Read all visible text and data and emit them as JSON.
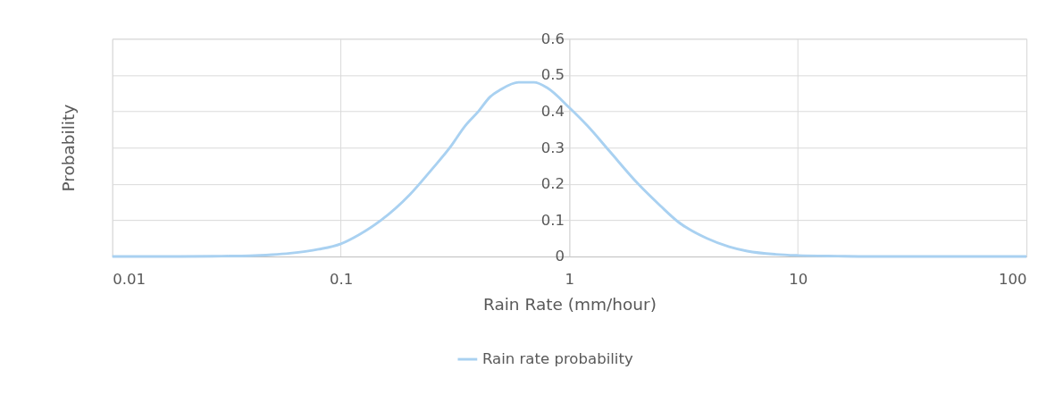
{
  "chart_data": {
    "type": "line",
    "xlabel": "Rain Rate (mm/hour)",
    "ylabel": "Probability",
    "log": "x",
    "grid": true,
    "legend": "bottom",
    "marker": "none",
    "line_style": "solid",
    "xlim": [
      0.01,
      100
    ],
    "xticks": [
      0.01,
      0.1,
      1,
      10,
      100
    ],
    "ylim": [
      0,
      0.6
    ],
    "yticks": [
      0,
      0.1,
      0.2,
      0.3,
      0.4,
      0.5,
      0.6
    ],
    "x": [
      0.01,
      0.02,
      0.03,
      0.04,
      0.05,
      0.06,
      0.07,
      0.08,
      0.1,
      0.12,
      0.15,
      0.2,
      0.25,
      0.3,
      0.35,
      0.4,
      0.45,
      0.5,
      0.6,
      0.7,
      0.8,
      1,
      1.2,
      1.5,
      2,
      2.5,
      3,
      4,
      5,
      6,
      8,
      10,
      15,
      20,
      50,
      100
    ],
    "series": [
      {
        "name": "Rain rate probability",
        "color": "#a9d1f1",
        "values": [
          0,
          0,
          0.001,
          0.002,
          0.005,
          0.009,
          0.014,
          0.02,
          0.035,
          0.06,
          0.1,
          0.17,
          0.24,
          0.3,
          0.36,
          0.4,
          0.44,
          0.46,
          0.48,
          0.48,
          0.465,
          0.41,
          0.36,
          0.29,
          0.2,
          0.14,
          0.095,
          0.05,
          0.027,
          0.015,
          0.006,
          0.003,
          0.001,
          0,
          0,
          0
        ]
      }
    ]
  }
}
